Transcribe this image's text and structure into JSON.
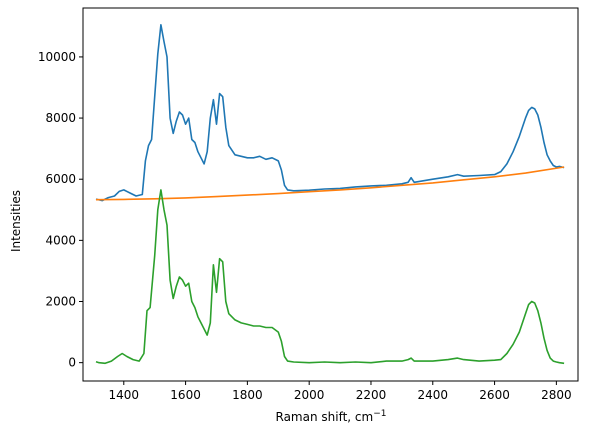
{
  "chart_data": {
    "type": "line",
    "xlabel": "Raman shift, cm",
    "xlabel_sup": "−1",
    "ylabel": "Intensities",
    "xlim": [
      1268,
      2870
    ],
    "ylim": [
      -600,
      11600
    ],
    "xticks": [
      {
        "value": 1400,
        "label": "1400"
      },
      {
        "value": 1600,
        "label": "1600"
      },
      {
        "value": 1800,
        "label": "1800"
      },
      {
        "value": 2000,
        "label": "2000"
      },
      {
        "value": 2200,
        "label": "2200"
      },
      {
        "value": 2400,
        "label": "2400"
      },
      {
        "value": 2600,
        "label": "2600"
      },
      {
        "value": 2800,
        "label": "2800"
      }
    ],
    "yticks": [
      {
        "value": 0,
        "label": "0"
      },
      {
        "value": 2000,
        "label": "2000"
      },
      {
        "value": 4000,
        "label": "4000"
      },
      {
        "value": 6000,
        "label": "6000"
      },
      {
        "value": 8000,
        "label": "8000"
      },
      {
        "value": 10000,
        "label": "10000"
      }
    ],
    "series": [
      {
        "color": "#1f77b4",
        "x": [
          1310,
          1330,
          1350,
          1370,
          1385,
          1400,
          1420,
          1440,
          1460,
          1470,
          1480,
          1490,
          1500,
          1510,
          1520,
          1530,
          1540,
          1550,
          1560,
          1570,
          1580,
          1590,
          1600,
          1610,
          1620,
          1630,
          1640,
          1650,
          1660,
          1670,
          1680,
          1690,
          1700,
          1710,
          1720,
          1730,
          1740,
          1760,
          1780,
          1800,
          1820,
          1840,
          1860,
          1880,
          1900,
          1910,
          1920,
          1930,
          1950,
          2000,
          2050,
          2100,
          2150,
          2200,
          2250,
          2300,
          2320,
          2330,
          2340,
          2400,
          2450,
          2480,
          2500,
          2550,
          2600,
          2620,
          2640,
          2660,
          2680,
          2700,
          2710,
          2720,
          2730,
          2740,
          2750,
          2760,
          2770,
          2780,
          2790,
          2800,
          2810,
          2825
        ],
        "y": [
          5350,
          5300,
          5400,
          5450,
          5600,
          5650,
          5550,
          5450,
          5500,
          6600,
          7100,
          7300,
          8700,
          10100,
          11050,
          10500,
          10000,
          8000,
          7500,
          7900,
          8200,
          8100,
          7800,
          8000,
          7300,
          7200,
          6900,
          6700,
          6500,
          6900,
          8000,
          8600,
          7800,
          8800,
          8700,
          7700,
          7100,
          6800,
          6750,
          6700,
          6700,
          6750,
          6650,
          6700,
          6600,
          6300,
          5800,
          5650,
          5620,
          5640,
          5680,
          5700,
          5750,
          5780,
          5800,
          5850,
          5900,
          6050,
          5900,
          6000,
          6080,
          6150,
          6100,
          6120,
          6150,
          6250,
          6500,
          6900,
          7400,
          8000,
          8250,
          8350,
          8300,
          8100,
          7700,
          7200,
          6800,
          6600,
          6450,
          6400,
          6420,
          6380
        ]
      },
      {
        "color": "#ff7f0e",
        "x": [
          1310,
          1400,
          1500,
          1600,
          1700,
          1800,
          1900,
          2000,
          2100,
          2200,
          2300,
          2400,
          2500,
          2600,
          2700,
          2825
        ],
        "y": [
          5330,
          5340,
          5360,
          5390,
          5430,
          5480,
          5530,
          5590,
          5650,
          5720,
          5800,
          5880,
          5980,
          6080,
          6200,
          6400
        ]
      },
      {
        "color": "#2ca02c",
        "x": [
          1310,
          1320,
          1340,
          1360,
          1380,
          1395,
          1410,
          1430,
          1450,
          1465,
          1475,
          1485,
          1500,
          1510,
          1520,
          1530,
          1540,
          1550,
          1560,
          1570,
          1580,
          1590,
          1600,
          1610,
          1620,
          1630,
          1640,
          1650,
          1660,
          1670,
          1680,
          1690,
          1700,
          1710,
          1720,
          1730,
          1740,
          1760,
          1780,
          1800,
          1820,
          1840,
          1860,
          1880,
          1900,
          1910,
          1920,
          1930,
          1950,
          2000,
          2050,
          2100,
          2150,
          2200,
          2250,
          2300,
          2320,
          2330,
          2340,
          2400,
          2450,
          2480,
          2500,
          2550,
          2600,
          2620,
          2640,
          2660,
          2680,
          2700,
          2710,
          2720,
          2730,
          2740,
          2750,
          2760,
          2770,
          2780,
          2790,
          2800,
          2810,
          2825
        ],
        "y": [
          30,
          0,
          -20,
          50,
          200,
          300,
          200,
          100,
          50,
          300,
          1700,
          1800,
          3500,
          5000,
          5650,
          5000,
          4500,
          2700,
          2100,
          2500,
          2800,
          2700,
          2500,
          2600,
          2000,
          1800,
          1500,
          1300,
          1100,
          900,
          1300,
          3200,
          2300,
          3400,
          3300,
          2000,
          1600,
          1400,
          1300,
          1250,
          1200,
          1200,
          1150,
          1150,
          1000,
          700,
          200,
          50,
          20,
          0,
          20,
          0,
          20,
          0,
          50,
          50,
          100,
          150,
          50,
          50,
          100,
          150,
          100,
          50,
          80,
          100,
          300,
          600,
          1000,
          1600,
          1900,
          2000,
          1950,
          1700,
          1300,
          800,
          400,
          150,
          50,
          20,
          0,
          -20
        ]
      }
    ]
  }
}
